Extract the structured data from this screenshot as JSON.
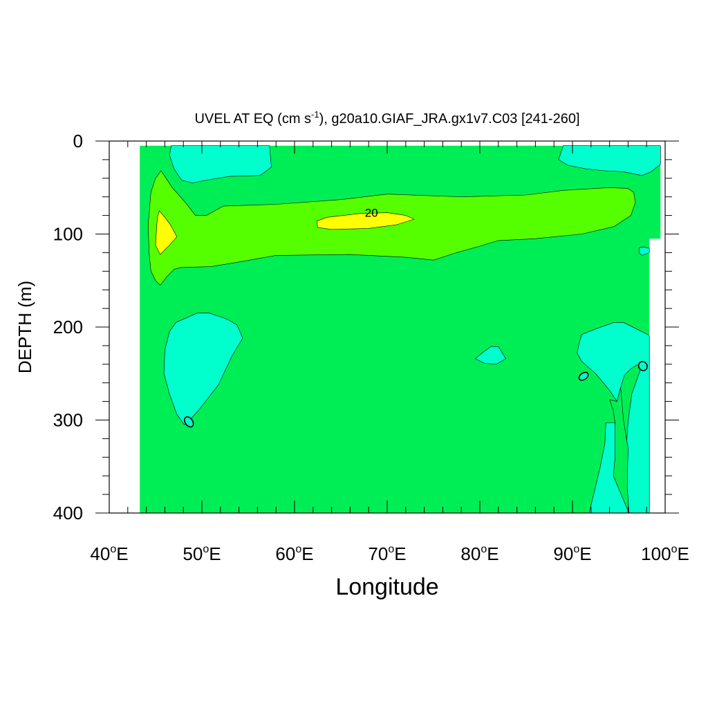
{
  "chart_data": {
    "type": "contour",
    "title": "UVEL AT EQ (cm s",
    "title_superscript": "-1",
    "title_rest": "), g20a10.GIAF_JRA.gx1v7.C03 [241-260]",
    "xlabel": "Longitude",
    "ylabel": "DEPTH (m)",
    "xlim": [
      40,
      100
    ],
    "ylim": [
      400,
      0
    ],
    "x_ticks": [
      {
        "value": 40,
        "label": "40",
        "suffix": "E"
      },
      {
        "value": 50,
        "label": "50",
        "suffix": "E"
      },
      {
        "value": 60,
        "label": "60",
        "suffix": "E"
      },
      {
        "value": 70,
        "label": "70",
        "suffix": "E"
      },
      {
        "value": 80,
        "label": "80",
        "suffix": "E"
      },
      {
        "value": 90,
        "label": "90",
        "suffix": "E"
      },
      {
        "value": 100,
        "label": "100",
        "suffix": "E"
      }
    ],
    "degree_symbol": "o",
    "y_ticks": [
      {
        "value": 0,
        "label": "0"
      },
      {
        "value": 100,
        "label": "100"
      },
      {
        "value": 200,
        "label": "200"
      },
      {
        "value": 300,
        "label": "300"
      },
      {
        "value": 400,
        "label": "400"
      }
    ],
    "colors": {
      "background_field": "#00ee55",
      "negative": "#00ffcc",
      "positive_low": "#55ff00",
      "positive_high": "#ffff00",
      "contour_line": "#000000"
    },
    "contour_labels": [
      {
        "text": "20",
        "lon": 68.3,
        "depth": 77
      },
      {
        "text": "0",
        "lon": 48.5,
        "depth": 302
      },
      {
        "text": "0",
        "lon": 91.1,
        "depth": 253
      },
      {
        "text": "0",
        "lon": 97.5,
        "depth": 242
      }
    ],
    "regions": [
      {
        "level": "ocean",
        "color": "#00ee55",
        "points": [
          [
            43.3,
            5
          ],
          [
            99.5,
            5
          ],
          [
            99.5,
            105
          ],
          [
            98.3,
            105
          ],
          [
            98.3,
            400
          ],
          [
            43.3,
            400
          ]
        ]
      },
      {
        "level": "negative",
        "color": "#00ffcc",
        "points": [
          [
            46.7,
            5
          ],
          [
            57.3,
            5
          ],
          [
            57.5,
            28
          ],
          [
            56.3,
            37
          ],
          [
            53,
            38
          ],
          [
            50.5,
            42
          ],
          [
            49,
            45
          ],
          [
            47.8,
            42
          ],
          [
            47,
            30
          ],
          [
            46.5,
            15
          ]
        ]
      },
      {
        "level": "negative",
        "color": "#00ffcc",
        "points": [
          [
            89,
            5
          ],
          [
            99.5,
            5
          ],
          [
            99.5,
            25
          ],
          [
            98.5,
            33
          ],
          [
            97.5,
            37
          ],
          [
            95.5,
            33
          ],
          [
            93.5,
            32
          ],
          [
            91.5,
            30
          ],
          [
            89.5,
            26
          ],
          [
            88.5,
            20
          ]
        ]
      },
      {
        "level": "positive_low",
        "color": "#55ff00",
        "points": [
          [
            45.6,
            32
          ],
          [
            46.8,
            50
          ],
          [
            48.3,
            67
          ],
          [
            49.3,
            80
          ],
          [
            50.5,
            80
          ],
          [
            52.3,
            70
          ],
          [
            58,
            68
          ],
          [
            65,
            63
          ],
          [
            70,
            57
          ],
          [
            78,
            60
          ],
          [
            85,
            58
          ],
          [
            89,
            53
          ],
          [
            94,
            50
          ],
          [
            96,
            51
          ],
          [
            96.6,
            55
          ],
          [
            96.8,
            66
          ],
          [
            96.3,
            80
          ],
          [
            94.5,
            92
          ],
          [
            91,
            100
          ],
          [
            86,
            105
          ],
          [
            82,
            107
          ],
          [
            80,
            113
          ],
          [
            77.5,
            120
          ],
          [
            75,
            128
          ],
          [
            72,
            125
          ],
          [
            66,
            122
          ],
          [
            58,
            123
          ],
          [
            54,
            130
          ],
          [
            51,
            135
          ],
          [
            47.7,
            136
          ],
          [
            47,
            138
          ],
          [
            46.2,
            146
          ],
          [
            45.5,
            155
          ],
          [
            45,
            150
          ],
          [
            44.5,
            140
          ],
          [
            44.3,
            120
          ],
          [
            44.2,
            90
          ],
          [
            44.5,
            55
          ],
          [
            45,
            40
          ]
        ]
      },
      {
        "level": "positive_high",
        "color": "#ffff00",
        "points": [
          [
            45.4,
            75
          ],
          [
            46,
            82
          ],
          [
            46.6,
            90
          ],
          [
            47.3,
            103
          ],
          [
            46.5,
            112
          ],
          [
            45.5,
            122
          ],
          [
            45,
            112
          ],
          [
            45.1,
            95
          ],
          [
            45.2,
            82
          ]
        ]
      },
      {
        "level": "positive_high",
        "color": "#ffff00",
        "points": [
          [
            62.4,
            86
          ],
          [
            63.5,
            82
          ],
          [
            67,
            78
          ],
          [
            70,
            77
          ],
          [
            72,
            80
          ],
          [
            72.9,
            84
          ],
          [
            71,
            90
          ],
          [
            68,
            94
          ],
          [
            64,
            95
          ],
          [
            62.5,
            93
          ]
        ]
      },
      {
        "level": "negative",
        "color": "#00ffcc",
        "points": [
          [
            97.5,
            114
          ],
          [
            98.3,
            115
          ],
          [
            98.3,
            120
          ],
          [
            97.5,
            123
          ],
          [
            97.2,
            120
          ],
          [
            97.2,
            115
          ]
        ]
      },
      {
        "level": "negative",
        "color": "#00ffcc",
        "points": [
          [
            49.5,
            185
          ],
          [
            50.8,
            185
          ],
          [
            52.3,
            190
          ],
          [
            53,
            193
          ],
          [
            53.8,
            198
          ],
          [
            54.4,
            212
          ],
          [
            53.2,
            232
          ],
          [
            51.8,
            262
          ],
          [
            49.6,
            290
          ],
          [
            48.4,
            303
          ],
          [
            48.1,
            305
          ],
          [
            47.3,
            294
          ],
          [
            46.5,
            272
          ],
          [
            45.9,
            250
          ],
          [
            46,
            225
          ],
          [
            46.5,
            205
          ],
          [
            47.2,
            195
          ]
        ]
      },
      {
        "level": "negative",
        "color": "#00ffcc",
        "points": [
          [
            79.5,
            234
          ],
          [
            80.5,
            226
          ],
          [
            81.2,
            221
          ],
          [
            82,
            221
          ],
          [
            82.8,
            234
          ],
          [
            81.8,
            240
          ],
          [
            80.5,
            239
          ]
        ]
      },
      {
        "level": "negative",
        "color": "#00ffcc",
        "points": [
          [
            91,
            208
          ],
          [
            92.5,
            202
          ],
          [
            94.5,
            195
          ],
          [
            95.5,
            195
          ],
          [
            97.5,
            205
          ],
          [
            98.3,
            209
          ],
          [
            98.3,
            400
          ],
          [
            96.1,
            400
          ],
          [
            95.9,
            372
          ],
          [
            95.8,
            330
          ],
          [
            96,
            302
          ],
          [
            96.4,
            272
          ],
          [
            97,
            255
          ],
          [
            97.5,
            241
          ],
          [
            96.9,
            241
          ],
          [
            96.3,
            245
          ],
          [
            95.6,
            252
          ],
          [
            95.2,
            265
          ],
          [
            94.8,
            280
          ],
          [
            94,
            268
          ],
          [
            92.5,
            250
          ],
          [
            91,
            237
          ],
          [
            90.5,
            228
          ],
          [
            90.7,
            218
          ]
        ]
      },
      {
        "level": "positive_low_cut",
        "color": "#00ee55",
        "points": [
          [
            95.2,
            265
          ],
          [
            95.5,
            300
          ],
          [
            96,
            330
          ],
          [
            95.9,
            372
          ],
          [
            96.1,
            400
          ],
          [
            93.3,
            400
          ],
          [
            93.8,
            360
          ],
          [
            94.5,
            330
          ],
          [
            94.6,
            303
          ],
          [
            94.4,
            290
          ],
          [
            94,
            278
          ],
          [
            94.8,
            280
          ]
        ]
      },
      {
        "level": "fill_bottom",
        "color": "#00ffcc",
        "points": [
          [
            93.6,
            303
          ],
          [
            94.6,
            303
          ],
          [
            94.6,
            340
          ],
          [
            94.4,
            360
          ],
          [
            96.1,
            400
          ],
          [
            91.8,
            400
          ],
          [
            92.4,
            375
          ],
          [
            93,
            350
          ],
          [
            93.5,
            325
          ]
        ]
      }
    ],
    "zero_loops": [
      {
        "lon": 48.6,
        "depth": 302,
        "rlon": 0.4,
        "rdepth": 6
      },
      {
        "lon": 91.2,
        "depth": 253,
        "rlon": 0.55,
        "rdepth": 3.5
      },
      {
        "lon": 97.6,
        "depth": 242,
        "rlon": 0.45,
        "rdepth": 5
      }
    ]
  }
}
